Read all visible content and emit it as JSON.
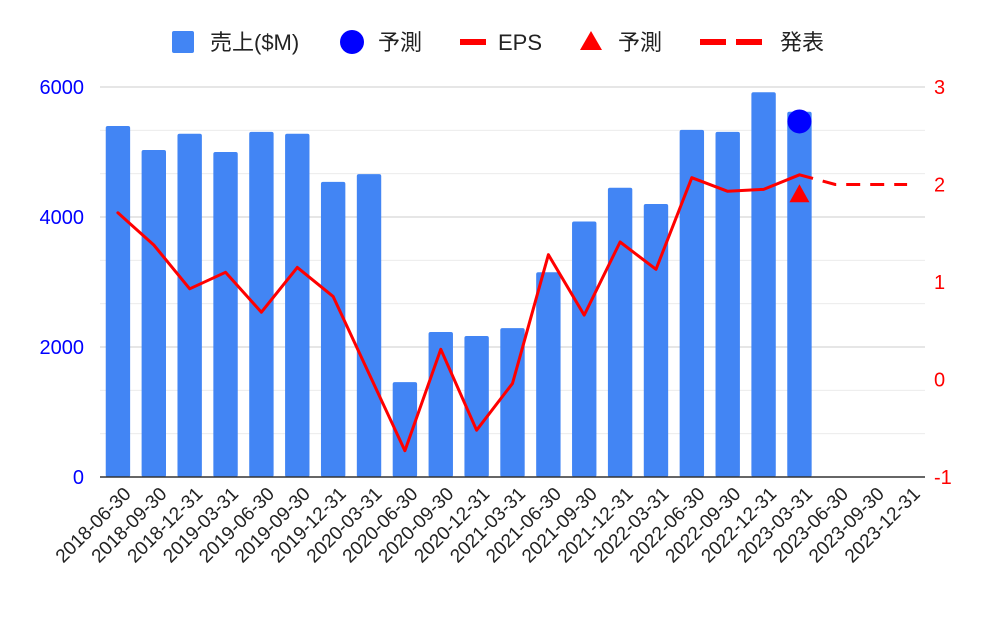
{
  "chart_data": {
    "type": "bar",
    "categories": [
      "2018-06-30",
      "2018-09-30",
      "2018-12-31",
      "2019-03-31",
      "2019-06-30",
      "2019-09-30",
      "2019-12-31",
      "2020-03-31",
      "2020-06-30",
      "2020-09-30",
      "2020-12-31",
      "2021-03-31",
      "2021-06-30",
      "2021-09-30",
      "2021-12-31",
      "2022-03-31",
      "2022-06-30",
      "2022-09-30",
      "2022-12-31",
      "2023-03-31",
      "2023-06-30",
      "2023-09-30",
      "2023-12-31"
    ],
    "left_axis": {
      "ylim": [
        0,
        6000
      ],
      "ticks": [
        "0",
        "2000",
        "4000",
        "6000"
      ],
      "color": "#0000ff"
    },
    "right_axis": {
      "ylim": [
        -1,
        3
      ],
      "ticks": [
        "-1",
        "0",
        "1",
        "2",
        "3"
      ],
      "color": "#ff0000"
    },
    "grid": true,
    "legend_placement": "top",
    "series": [
      {
        "name": "売上($M)",
        "type": "bar",
        "axis": "left",
        "color": "#4285f4",
        "values": [
          5400,
          5030,
          5280,
          5000,
          5310,
          5280,
          4540,
          4660,
          1460,
          2230,
          2170,
          2290,
          3150,
          3930,
          4450,
          4200,
          5340,
          5310,
          5920,
          5620,
          null,
          null,
          null
        ]
      },
      {
        "name": "予測",
        "type": "scatter",
        "marker": "circle",
        "axis": "left",
        "color": "#0000ff",
        "points": [
          {
            "x": "2023-03-31",
            "y": 5470
          }
        ]
      },
      {
        "name": "EPS",
        "type": "line",
        "axis": "right",
        "color": "#ff0000",
        "values": [
          1.71,
          1.38,
          0.93,
          1.1,
          0.69,
          1.15,
          0.85,
          0.06,
          -0.73,
          0.31,
          -0.52,
          -0.04,
          1.28,
          0.66,
          1.41,
          1.13,
          2.07,
          1.93,
          1.95,
          2.1,
          null,
          null,
          null
        ]
      },
      {
        "name": "予測",
        "type": "scatter",
        "marker": "triangle",
        "axis": "right",
        "color": "#ff0000",
        "points": [
          {
            "x": "2023-03-31",
            "y": 1.9
          }
        ]
      },
      {
        "name": "発表",
        "type": "line",
        "style": "dashed",
        "axis": "right",
        "color": "#ff0000",
        "values": [
          null,
          null,
          null,
          null,
          null,
          null,
          null,
          null,
          null,
          null,
          null,
          null,
          null,
          null,
          null,
          null,
          null,
          null,
          null,
          2.1,
          2.0,
          2.0,
          2.0
        ]
      }
    ]
  }
}
